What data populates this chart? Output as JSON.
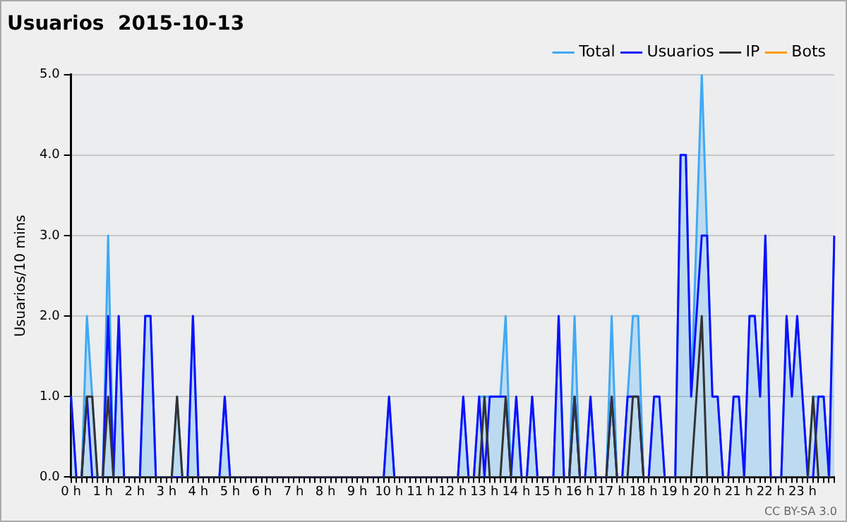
{
  "chart_data": {
    "type": "line",
    "title": "Usuarios  2015-10-13",
    "ylabel": "Usuarios/10 mins",
    "categories": [
      "0 h",
      null,
      null,
      null,
      null,
      null,
      "1 h",
      null,
      null,
      null,
      null,
      null,
      "2 h",
      null,
      null,
      null,
      null,
      null,
      "3 h",
      null,
      null,
      null,
      null,
      null,
      "4 h",
      null,
      null,
      null,
      null,
      null,
      "5 h",
      null,
      null,
      null,
      null,
      null,
      "6 h",
      null,
      null,
      null,
      null,
      null,
      "7 h",
      null,
      null,
      null,
      null,
      null,
      "8 h",
      null,
      null,
      null,
      null,
      null,
      "9 h",
      null,
      null,
      null,
      null,
      null,
      "10 h",
      null,
      null,
      null,
      null,
      null,
      "11 h",
      null,
      null,
      null,
      null,
      null,
      "12 h",
      null,
      null,
      null,
      null,
      null,
      "13 h",
      null,
      null,
      null,
      null,
      null,
      "14 h",
      null,
      null,
      null,
      null,
      null,
      "15 h",
      null,
      null,
      null,
      null,
      null,
      "16 h",
      null,
      null,
      null,
      null,
      null,
      "17 h",
      null,
      null,
      null,
      null,
      null,
      "18 h",
      null,
      null,
      null,
      null,
      null,
      "19 h",
      null,
      null,
      null,
      null,
      null,
      "20 h",
      null,
      null,
      null,
      null,
      null,
      "21 h",
      null,
      null,
      null,
      null,
      null,
      "22 h",
      null,
      null,
      null,
      null,
      null,
      "23 h",
      null,
      null,
      null,
      null,
      null,
      null
    ],
    "series": [
      {
        "name": "Total",
        "type": "area",
        "color": "#3fa9f5",
        "values": [
          1,
          0,
          0,
          2,
          1,
          0,
          0,
          3,
          0,
          2,
          0,
          0,
          0,
          0,
          2,
          2,
          0,
          0,
          0,
          0,
          1,
          0,
          0,
          2,
          0,
          0,
          0,
          0,
          0,
          1,
          0,
          0,
          0,
          0,
          0,
          0,
          0,
          0,
          0,
          0,
          0,
          0,
          0,
          0,
          0,
          0,
          0,
          0,
          0,
          0,
          0,
          0,
          0,
          0,
          0,
          0,
          0,
          0,
          0,
          0,
          1,
          0,
          0,
          0,
          0,
          0,
          0,
          0,
          0,
          0,
          0,
          0,
          0,
          0,
          1,
          0,
          0,
          1,
          1,
          1,
          1,
          1,
          2,
          0,
          1,
          0,
          0,
          1,
          0,
          0,
          0,
          0,
          2,
          0,
          0,
          2,
          0,
          0,
          1,
          0,
          0,
          0,
          2,
          0,
          0,
          1,
          2,
          2,
          0,
          0,
          1,
          1,
          0,
          0,
          0,
          4,
          4,
          1,
          3,
          5,
          3,
          1,
          1,
          0,
          0,
          1,
          1,
          0,
          2,
          2,
          1,
          3,
          0,
          0,
          0,
          2,
          1,
          2,
          1,
          0,
          1,
          1,
          1,
          0,
          3
        ]
      },
      {
        "name": "Usuarios",
        "type": "line",
        "color": "#1010ff",
        "values": [
          1,
          0,
          0,
          1,
          0,
          0,
          0,
          2,
          0,
          2,
          0,
          0,
          0,
          0,
          2,
          2,
          0,
          0,
          0,
          0,
          0,
          0,
          0,
          2,
          0,
          0,
          0,
          0,
          0,
          1,
          0,
          0,
          0,
          0,
          0,
          0,
          0,
          0,
          0,
          0,
          0,
          0,
          0,
          0,
          0,
          0,
          0,
          0,
          0,
          0,
          0,
          0,
          0,
          0,
          0,
          0,
          0,
          0,
          0,
          0,
          1,
          0,
          0,
          0,
          0,
          0,
          0,
          0,
          0,
          0,
          0,
          0,
          0,
          0,
          1,
          0,
          0,
          1,
          0,
          1,
          1,
          1,
          1,
          0,
          1,
          0,
          0,
          1,
          0,
          0,
          0,
          0,
          2,
          0,
          0,
          1,
          0,
          0,
          1,
          0,
          0,
          0,
          1,
          0,
          0,
          1,
          1,
          1,
          0,
          0,
          1,
          1,
          0,
          0,
          0,
          4,
          4,
          1,
          2,
          3,
          3,
          1,
          1,
          0,
          0,
          1,
          1,
          0,
          2,
          2,
          1,
          3,
          0,
          0,
          0,
          2,
          1,
          2,
          1,
          0,
          0,
          1,
          1,
          0,
          3
        ]
      },
      {
        "name": "IP",
        "type": "line",
        "color": "#333333",
        "values": [
          0,
          0,
          0,
          1,
          1,
          0,
          0,
          1,
          0,
          0,
          0,
          0,
          0,
          0,
          0,
          0,
          0,
          0,
          0,
          0,
          1,
          0,
          0,
          0,
          0,
          0,
          0,
          0,
          0,
          0,
          0,
          0,
          0,
          0,
          0,
          0,
          0,
          0,
          0,
          0,
          0,
          0,
          0,
          0,
          0,
          0,
          0,
          0,
          0,
          0,
          0,
          0,
          0,
          0,
          0,
          0,
          0,
          0,
          0,
          0,
          0,
          0,
          0,
          0,
          0,
          0,
          0,
          0,
          0,
          0,
          0,
          0,
          0,
          0,
          0,
          0,
          0,
          0,
          1,
          0,
          0,
          0,
          1,
          0,
          0,
          0,
          0,
          0,
          0,
          0,
          0,
          0,
          0,
          0,
          0,
          1,
          0,
          0,
          0,
          0,
          0,
          0,
          1,
          0,
          0,
          0,
          1,
          1,
          0,
          0,
          0,
          0,
          0,
          0,
          0,
          0,
          0,
          0,
          1,
          2,
          0,
          0,
          0,
          0,
          0,
          0,
          0,
          0,
          0,
          0,
          0,
          0,
          0,
          0,
          0,
          0,
          0,
          0,
          0,
          0,
          1,
          0,
          0,
          0,
          0
        ]
      },
      {
        "name": "Bots",
        "type": "line",
        "color": "#ff9900",
        "values": [
          null,
          null,
          null,
          null,
          null,
          null,
          null,
          null,
          null,
          null,
          null,
          null,
          null,
          null,
          null,
          null,
          null,
          null,
          null,
          null,
          null,
          null,
          null,
          null,
          null,
          null,
          null,
          null,
          null,
          null,
          null,
          null,
          null,
          null,
          null,
          null,
          null,
          null,
          null,
          null,
          null,
          null,
          null,
          null,
          null,
          null,
          null,
          null,
          null,
          null,
          null,
          null,
          null,
          null,
          null,
          null,
          null,
          null,
          null,
          null,
          null,
          null,
          null,
          null,
          null,
          null,
          null,
          null,
          null,
          null,
          null,
          null,
          null,
          null,
          null,
          null,
          null,
          null,
          null,
          null,
          null,
          null,
          null,
          null,
          null,
          null,
          null,
          null,
          null,
          null,
          null,
          null,
          null,
          null,
          null,
          null,
          null,
          null,
          null,
          null,
          null,
          null,
          null,
          null,
          null,
          null,
          null,
          null,
          null,
          null,
          null,
          null,
          null,
          null,
          null,
          null,
          null,
          null,
          null,
          null,
          null,
          null,
          null,
          null,
          null,
          null,
          null,
          null,
          null,
          null,
          null,
          null,
          null,
          null,
          null,
          null,
          null,
          null,
          null,
          null,
          null,
          null,
          null,
          null,
          null
        ]
      }
    ],
    "ylim": [
      0,
      5
    ],
    "yticks": [
      {
        "value": 0,
        "label": "0.0"
      },
      {
        "value": 1,
        "label": "1.0"
      },
      {
        "value": 2,
        "label": "2.0"
      },
      {
        "value": 3,
        "label": "3.0"
      },
      {
        "value": 4,
        "label": "4.0"
      },
      {
        "value": 5,
        "label": "5.0"
      }
    ],
    "grid": "y",
    "legend": "top right",
    "annotations": [
      "CC BY-SA 3.0"
    ]
  }
}
